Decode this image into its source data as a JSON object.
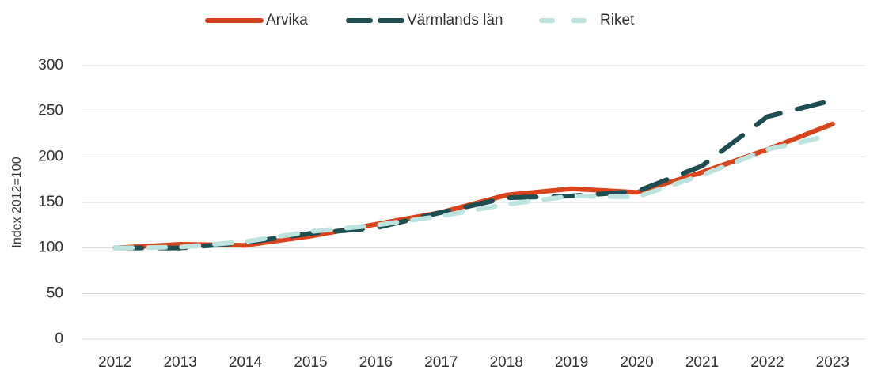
{
  "chart_data": {
    "type": "line",
    "y_label": "Index 2012=100",
    "categories": [
      "2012",
      "2013",
      "2014",
      "2015",
      "2016",
      "2017",
      "2018",
      "2019",
      "2020",
      "2021",
      "2022",
      "2023"
    ],
    "series": [
      {
        "name": "Arvika",
        "color": "#d9441c",
        "dash": "solid",
        "values": [
          100,
          104,
          103,
          113,
          126,
          139,
          158,
          165,
          161,
          183,
          208,
          236
        ]
      },
      {
        "name": "Värmlands län",
        "color": "#1f4e52",
        "dash": "long",
        "values": [
          100,
          100,
          106,
          116,
          122,
          139,
          155,
          157,
          162,
          190,
          244,
          262
        ]
      },
      {
        "name": "Riket",
        "color": "#bde3df",
        "dash": "short",
        "values": [
          100,
          101,
          107,
          118,
          125,
          135,
          148,
          157,
          156,
          180,
          208,
          224
        ]
      }
    ],
    "ylim": [
      0,
      300
    ],
    "yticks": [
      0,
      50,
      100,
      150,
      200,
      250,
      300
    ],
    "grid": true,
    "legend": "top"
  }
}
